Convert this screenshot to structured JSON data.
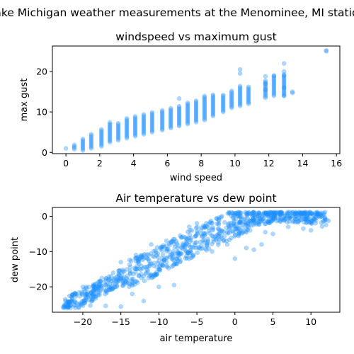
{
  "figure": {
    "suptitle": "Lake Michigan weather measurements at the Menominee, MI station",
    "point_color": "#1e90ff"
  },
  "chart_data": [
    {
      "type": "scatter",
      "title": "windspeed vs maximum gust",
      "xlabel": "wind speed",
      "ylabel": "max gust",
      "xlim": [
        -0.8,
        16.2
      ],
      "ylim": [
        -0.3,
        26.3
      ],
      "xticks": [
        0,
        2,
        4,
        6,
        8,
        10,
        12,
        14,
        16
      ],
      "yticks": [
        0,
        10,
        20
      ],
      "grid": false,
      "x_levels": [
        0,
        0.5,
        1.0,
        1.5,
        2.1,
        2.6,
        3.1,
        3.6,
        4.1,
        4.6,
        5.1,
        5.7,
        6.2,
        6.7,
        7.2,
        7.7,
        8.2,
        8.7,
        9.3,
        9.8,
        10.3,
        10.8,
        11.8,
        12.3,
        12.9,
        13.4,
        15.4
      ],
      "gust_range_at_x": [
        [
          1.0,
          1.0
        ],
        [
          0.8,
          2.0
        ],
        [
          0.5,
          3.5
        ],
        [
          1.0,
          4.5
        ],
        [
          1.5,
          6.0
        ],
        [
          2.5,
          7.5
        ],
        [
          3.0,
          7.5
        ],
        [
          3.5,
          8.5
        ],
        [
          4.0,
          9.0
        ],
        [
          4.5,
          9.5
        ],
        [
          5.0,
          10.0
        ],
        [
          5.5,
          10.5
        ],
        [
          6.0,
          11.0
        ],
        [
          6.5,
          11.5
        ],
        [
          7.0,
          12.5
        ],
        [
          7.5,
          13.0
        ],
        [
          8.0,
          14.0
        ],
        [
          9.0,
          14.5
        ],
        [
          10.0,
          14.5
        ],
        [
          11.0,
          15.5
        ],
        [
          11.5,
          16.5
        ],
        [
          12.0,
          16.5
        ],
        [
          13.5,
          18.0
        ],
        [
          14.0,
          19.0
        ],
        [
          14.0,
          19.5
        ],
        [
          15.0,
          15.0
        ],
        [
          25.0,
          25.0
        ]
      ],
      "highlights": [
        [
          6.7,
          13.3
        ],
        [
          10.3,
          19.5
        ],
        [
          10.3,
          20.5
        ],
        [
          12.3,
          19.0
        ],
        [
          12.9,
          20.0
        ],
        [
          12.9,
          22.0
        ],
        [
          12.9,
          19.0
        ],
        [
          12.9,
          16.0
        ],
        [
          12.9,
          14.0
        ],
        [
          13.4,
          14.7
        ],
        [
          11.8,
          17.0
        ],
        [
          11.8,
          15.5
        ],
        [
          11.8,
          18.8
        ],
        [
          15.4,
          25.2
        ]
      ]
    },
    {
      "type": "scatter",
      "title": "Air temperature vs dew point",
      "xlabel": "air temperature",
      "ylabel": "dew point",
      "xlim": [
        -24,
        13.8
      ],
      "ylim": [
        -27.2,
        2.5
      ],
      "xticks": [
        -20,
        -15,
        -10,
        -5,
        0,
        5,
        10
      ],
      "yticks": [
        -20,
        -10,
        0
      ],
      "grid": false,
      "band_centerline": [
        [
          -22.5,
          -25.5
        ],
        [
          -20,
          -23.0
        ],
        [
          -18,
          -20.5
        ],
        [
          -16,
          -18.5
        ],
        [
          -14,
          -16.5
        ],
        [
          -12,
          -14.5
        ],
        [
          -10,
          -12.5
        ],
        [
          -8,
          -10.0
        ],
        [
          -6,
          -8.0
        ],
        [
          -4,
          -6.0
        ],
        [
          -2,
          -4.0
        ],
        [
          0,
          -2.0
        ],
        [
          2,
          -0.5
        ],
        [
          4,
          0.0
        ],
        [
          6,
          0.5
        ],
        [
          8,
          0.5
        ],
        [
          10,
          0.0
        ],
        [
          12,
          -1.0
        ]
      ],
      "highlights": [
        [
          -22.6,
          -25.8
        ],
        [
          -22.0,
          -25.2
        ],
        [
          -20.5,
          -25.0
        ],
        [
          -19.0,
          -25.3
        ],
        [
          -17.0,
          -25.4
        ],
        [
          -15.0,
          -25.6
        ],
        [
          -12.0,
          -24.0
        ],
        [
          -13.5,
          -22.0
        ],
        [
          -10.0,
          -20.0
        ],
        [
          -8.0,
          -19.5
        ],
        [
          -17.5,
          -17.5
        ],
        [
          -16.0,
          -16.0
        ],
        [
          -18.5,
          -21.0
        ],
        [
          -14.0,
          -19.0
        ],
        [
          -3.0,
          -10.0
        ],
        [
          0.0,
          -12.0
        ],
        [
          3.5,
          -8.0
        ],
        [
          2.5,
          -9.5
        ],
        [
          1.5,
          -9.0
        ],
        [
          5.0,
          -5.0
        ],
        [
          7.0,
          -3.0
        ],
        [
          9.0,
          -3.5
        ],
        [
          10.0,
          -4.0
        ],
        [
          12.0,
          -1.0
        ],
        [
          12.3,
          -1.3
        ],
        [
          6.0,
          1.0
        ],
        [
          8.0,
          1.0
        ],
        [
          10.0,
          0.8
        ],
        [
          2.0,
          -4.0
        ],
        [
          4.0,
          -4.5
        ],
        [
          -1.0,
          -8.0
        ],
        [
          -2.0,
          -5.0
        ],
        [
          -4.0,
          -3.0
        ],
        [
          -6.0,
          -3.0
        ],
        [
          -5.0,
          -2.0
        ],
        [
          0.0,
          0.5
        ],
        [
          0.5,
          1.0
        ],
        [
          -11.0,
          -8.0
        ],
        [
          -9.0,
          -7.0
        ],
        [
          -7.0,
          -6.0
        ],
        [
          -13.0,
          -11.0
        ],
        [
          -15.0,
          -13.0
        ],
        [
          -12.0,
          -17.0
        ],
        [
          -10.0,
          -15.0
        ],
        [
          -8.0,
          -13.5
        ],
        [
          -6.0,
          -12.0
        ],
        [
          -20.0,
          -20.0
        ]
      ]
    }
  ]
}
